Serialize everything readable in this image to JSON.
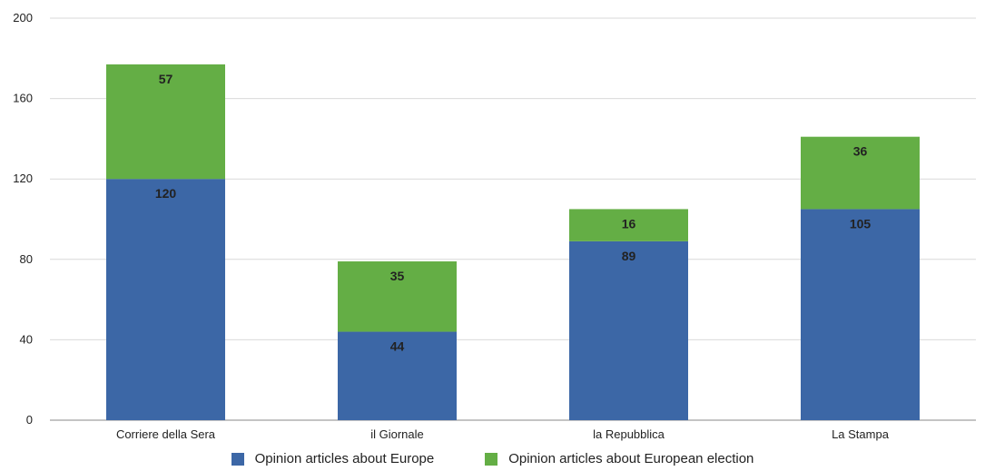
{
  "chart_data": {
    "type": "bar",
    "stacked": true,
    "categories": [
      "Corriere della Sera",
      "il Giornale",
      "la Repubblica",
      "La Stampa"
    ],
    "series": [
      {
        "name": "Opinion articles about Europe",
        "values": [
          120,
          44,
          89,
          105
        ],
        "color": "#3c67a6"
      },
      {
        "name": "Opinion articles about European election",
        "values": [
          57,
          35,
          16,
          36
        ],
        "color": "#64ae45"
      }
    ],
    "ylim": [
      0,
      200
    ],
    "yticks": [
      0,
      40,
      80,
      120,
      160,
      200
    ],
    "grid": true,
    "legend": "bottom-center",
    "title": "",
    "xlabel": "",
    "ylabel": ""
  }
}
